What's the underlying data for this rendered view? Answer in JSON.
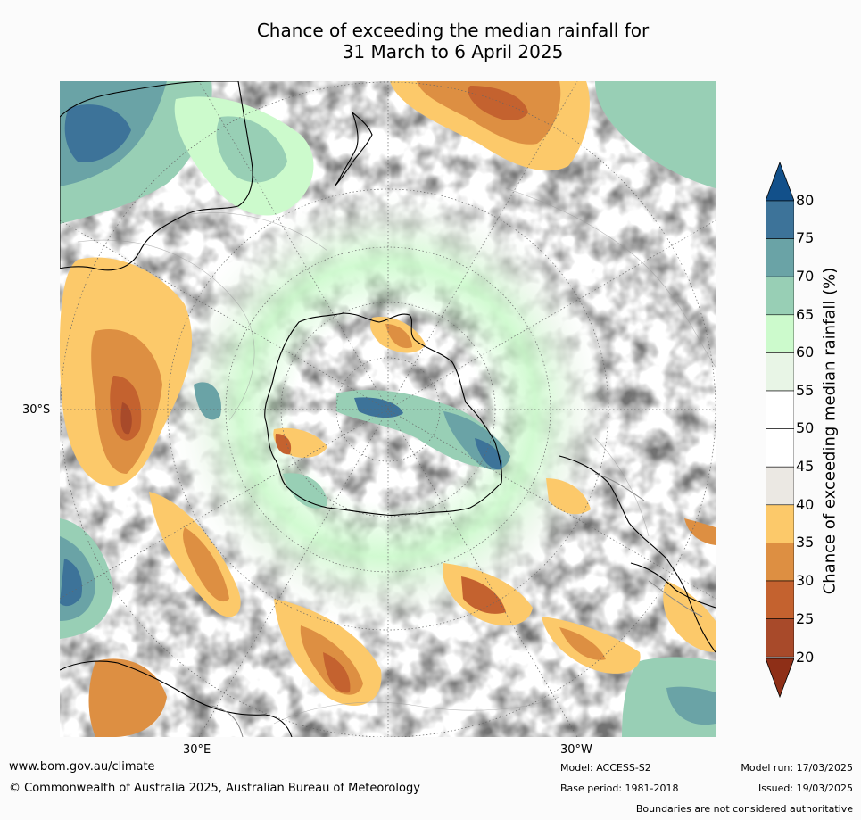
{
  "title": {
    "line1": "Chance of exceeding the median rainfall for",
    "line2": "31 March to 6 April 2025"
  },
  "map": {
    "projection": "south-polar stereographic",
    "longitude_labels": [
      "30°E",
      "30°W"
    ],
    "latitude_labels": [
      "30°S"
    ],
    "graticule": "dotted",
    "coastline_color": "#000000",
    "boundary_color": "#888888"
  },
  "colorbar": {
    "title": "Chance of exceeding median rainfall (%)",
    "ticks": [
      "80",
      "75",
      "70",
      "65",
      "60",
      "55",
      "50",
      "45",
      "40",
      "35",
      "30",
      "25",
      "20"
    ],
    "bands": [
      {
        "range": "<20",
        "color": "#8e2f17"
      },
      {
        "range": "20-25",
        "color": "#a84a2a"
      },
      {
        "range": "25-30",
        "color": "#c4622f"
      },
      {
        "range": "30-35",
        "color": "#dd8f42"
      },
      {
        "range": "35-40",
        "color": "#fcc96a"
      },
      {
        "range": "40-45",
        "color": "#ebe8e3"
      },
      {
        "range": "45-50",
        "color": "#ffffff"
      },
      {
        "range": "50-55",
        "color": "#ffffff"
      },
      {
        "range": "55-60",
        "color": "#e8f5e6"
      },
      {
        "range": "60-65",
        "color": "#ccfacc"
      },
      {
        "range": "65-70",
        "color": "#98cfb5"
      },
      {
        "range": "70-75",
        "color": "#6aa3a6"
      },
      {
        "range": "75-80",
        "color": "#3d7399"
      },
      {
        "range": ">80",
        "color": "#12508a"
      }
    ]
  },
  "footer": {
    "website": "www.bom.gov.au/climate",
    "copyright": "© Commonwealth of Australia 2025, Australian Bureau of Meteorology",
    "model": "Model: ACCESS-S2",
    "base_period": "Base period: 1981-2018",
    "model_run": "Model run: 17/03/2025",
    "issued": "Issued: 19/03/2025",
    "disclaimer": "Boundaries are not considered authoritative"
  }
}
